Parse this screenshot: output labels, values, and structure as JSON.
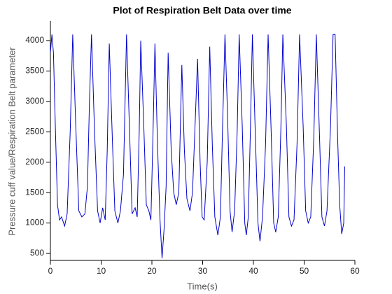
{
  "chart_data": {
    "type": "line",
    "title": "Plot of Respiration Belt Data over time",
    "xlabel": "Time(s)",
    "ylabel": "Pressure cuff value/Respiration Belt parameter",
    "xlim": [
      0,
      60
    ],
    "xticks": [
      0,
      10,
      20,
      30,
      40,
      50,
      60
    ],
    "ylim": [
      385,
      4322
    ],
    "yticks": [
      500,
      1000,
      1500,
      2000,
      2500,
      3000,
      3500,
      4000
    ],
    "series": [
      {
        "name": "Respiration Belt",
        "color": "#0000cc",
        "x": [
          0,
          0.3,
          0.6,
          1.0,
          1.4,
          1.8,
          2.2,
          2.8,
          3.3,
          3.9,
          4.4,
          5.0,
          5.6,
          6.2,
          6.8,
          7.3,
          7.7,
          8.1,
          8.7,
          9.3,
          9.8,
          10.3,
          10.8,
          11.2,
          11.6,
          12.2,
          12.7,
          13.3,
          13.8,
          14.4,
          15.0,
          15.6,
          16.1,
          16.7,
          17.1,
          17.5,
          17.8,
          18.4,
          18.9,
          19.4,
          19.8,
          20.2,
          20.6,
          21.1,
          21.6,
          22.0,
          22.4,
          22.8,
          23.2,
          23.8,
          24.3,
          24.8,
          25.3,
          25.9,
          26.4,
          26.9,
          27.5,
          28.0,
          28.5,
          29.0,
          29.5,
          29.9,
          30.3,
          30.9,
          31.4,
          31.9,
          32.4,
          33.0,
          33.5,
          33.9,
          34.4,
          34.9,
          35.4,
          35.8,
          36.3,
          36.8,
          37.2,
          37.8,
          38.3,
          38.6,
          39.0,
          39.4,
          39.8,
          40.4,
          40.9,
          41.3,
          41.8,
          42.4,
          42.9,
          43.5,
          44.0,
          44.4,
          44.9,
          45.4,
          45.8,
          46.5,
          47.0,
          47.5,
          48.0,
          48.6,
          49.1,
          49.8,
          50.3,
          50.8,
          51.3,
          51.9,
          52.4,
          53.0,
          53.5,
          54.0,
          54.5,
          55.2,
          55.7,
          56.1,
          56.6,
          57.0,
          57.4,
          57.8,
          58.0
        ],
        "values": [
          3800,
          4100,
          3800,
          2500,
          1300,
          1050,
          1100,
          950,
          1150,
          2500,
          4100,
          2600,
          1200,
          1100,
          1150,
          1600,
          3000,
          4100,
          2500,
          1200,
          1000,
          1250,
          1050,
          2200,
          3950,
          2400,
          1200,
          1000,
          1200,
          1800,
          4100,
          2500,
          1150,
          1250,
          1100,
          2500,
          4000,
          2600,
          1300,
          1200,
          1050,
          2400,
          3950,
          2300,
          1050,
          420,
          900,
          1600,
          3800,
          2200,
          1500,
          1300,
          1500,
          3600,
          2200,
          1400,
          1200,
          1500,
          2600,
          3700,
          2000,
          1100,
          1050,
          2000,
          3900,
          2300,
          1100,
          800,
          1100,
          2500,
          4100,
          2800,
          1200,
          850,
          1200,
          2500,
          4100,
          2600,
          1000,
          800,
          1100,
          2500,
          4100,
          2400,
          1000,
          700,
          1100,
          2300,
          4100,
          2500,
          1000,
          850,
          1100,
          2500,
          4100,
          2600,
          1100,
          950,
          1050,
          2300,
          4100,
          2600,
          1200,
          1000,
          1100,
          2400,
          4100,
          2500,
          1100,
          950,
          1200,
          2600,
          4100,
          4100,
          2400,
          1300,
          820,
          1000,
          1930
        ]
      }
    ]
  }
}
